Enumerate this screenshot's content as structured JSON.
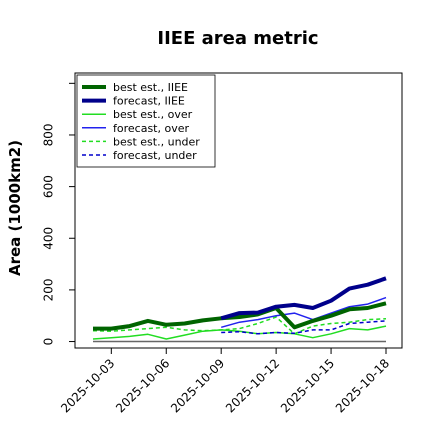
{
  "chart_data": {
    "type": "line",
    "title": "IIEE area metric",
    "xlabel": "",
    "ylabel": "Area (1000km2)",
    "x": [
      "2025-10-02",
      "2025-10-03",
      "2025-10-04",
      "2025-10-05",
      "2025-10-06",
      "2025-10-07",
      "2025-10-08",
      "2025-10-09",
      "2025-10-10",
      "2025-10-11",
      "2025-10-12",
      "2025-10-13",
      "2025-10-14",
      "2025-10-15",
      "2025-10-16",
      "2025-10-17",
      "2025-10-18"
    ],
    "xticks": [
      "2025-10-03",
      "2025-10-06",
      "2025-10-09",
      "2025-10-12",
      "2025-10-15",
      "2025-10-18"
    ],
    "highlight_tick": "2025-10-09",
    "highlight_color": "#2e8b2e",
    "ylim": [
      -25,
      1040
    ],
    "yticks": [
      0,
      200,
      400,
      600,
      800
    ],
    "ytick_labels": [
      "0",
      "200",
      "400",
      "600",
      "800"
    ],
    "grid": false,
    "legend_position": "top-left",
    "series": [
      {
        "name": "best est., IIEE",
        "color": "#006400",
        "style": "solid",
        "width": 4,
        "values": [
          50,
          50,
          60,
          80,
          65,
          70,
          82,
          90,
          95,
          105,
          130,
          55,
          80,
          100,
          125,
          130,
          148
        ]
      },
      {
        "name": "forecast, IIEE",
        "color": "#00008b",
        "style": "solid",
        "width": 4,
        "values": [
          null,
          null,
          null,
          null,
          null,
          null,
          null,
          90,
          110,
          112,
          135,
          142,
          130,
          158,
          205,
          220,
          245
        ]
      },
      {
        "name": "best est., over",
        "color": "#22dd22",
        "style": "solid",
        "width": 1.5,
        "values": [
          10,
          15,
          20,
          28,
          10,
          25,
          40,
          45,
          40,
          30,
          35,
          30,
          15,
          30,
          50,
          45,
          60
        ]
      },
      {
        "name": "forecast, over",
        "color": "#2222ee",
        "style": "solid",
        "width": 1.5,
        "values": [
          null,
          null,
          null,
          null,
          null,
          null,
          null,
          55,
          75,
          85,
          100,
          110,
          85,
          110,
          135,
          145,
          170
        ]
      },
      {
        "name": "best est., under",
        "color": "#22dd22",
        "style": "dashed",
        "width": 1.5,
        "values": [
          42,
          40,
          45,
          50,
          55,
          45,
          42,
          45,
          50,
          70,
          95,
          30,
          60,
          70,
          75,
          85,
          88
        ]
      },
      {
        "name": "forecast, under",
        "color": "#0000cc",
        "style": "dashed",
        "width": 1.5,
        "values": [
          null,
          null,
          null,
          null,
          null,
          null,
          null,
          35,
          38,
          30,
          35,
          32,
          45,
          45,
          70,
          75,
          80
        ]
      }
    ],
    "baseline": 0
  }
}
